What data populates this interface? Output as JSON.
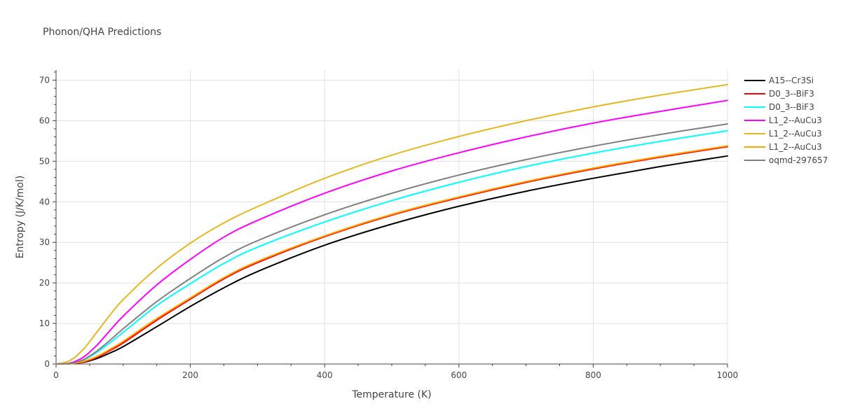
{
  "chart_data": {
    "type": "line",
    "title": "Phonon/QHA Predictions",
    "xlabel": "Temperature (K)",
    "ylabel": "Entropy (J/K/mol)",
    "xlim": [
      0,
      1000
    ],
    "ylim": [
      0,
      72.5
    ],
    "xticks": [
      0,
      200,
      400,
      600,
      800,
      1000
    ],
    "yticks": [
      0,
      10,
      20,
      30,
      40,
      50,
      60,
      70
    ],
    "grid": true,
    "legend_position": "top-right",
    "x": [
      0,
      20,
      40,
      60,
      80,
      100,
      150,
      200,
      250,
      300,
      400,
      500,
      600,
      700,
      800,
      900,
      1000
    ],
    "series": [
      {
        "name": "A15--Cr3Si",
        "color": "#000000",
        "values": [
          0,
          0.05,
          0.4,
          1.3,
          2.7,
          4.3,
          9.2,
          14.2,
          18.8,
          22.8,
          29.3,
          34.5,
          38.9,
          42.6,
          45.8,
          48.7,
          51.3
        ]
      },
      {
        "name": "D0_3--BiF3",
        "color": "#ff0000",
        "values": [
          0,
          0.05,
          0.5,
          1.6,
          3.3,
          5.2,
          10.8,
          16.0,
          21.0,
          25.0,
          31.4,
          36.7,
          41.0,
          44.8,
          48.1,
          51.0,
          53.6
        ]
      },
      {
        "name": "D0_3--BiF3",
        "color": "#00ffff",
        "values": [
          0,
          0.1,
          0.9,
          2.8,
          5.2,
          7.8,
          14.4,
          19.8,
          24.8,
          28.8,
          35.0,
          40.3,
          44.8,
          48.7,
          52.0,
          54.9,
          57.5
        ]
      },
      {
        "name": "L1_2--AuCu3",
        "color": "#ff00ff",
        "values": [
          0,
          0.2,
          1.6,
          4.5,
          8.2,
          11.8,
          19.5,
          25.8,
          31.3,
          35.4,
          42.1,
          47.6,
          52.1,
          56.0,
          59.4,
          62.3,
          65.0
        ]
      },
      {
        "name": "L1_2--AuCu3",
        "color": "#e6b820",
        "values": [
          0,
          0.8,
          3.5,
          7.7,
          12.0,
          15.9,
          23.6,
          29.8,
          34.8,
          38.8,
          45.8,
          51.5,
          56.1,
          60.0,
          63.4,
          66.3,
          68.9
        ]
      },
      {
        "name": "L1_2--AuCu3",
        "color": "#ffa500",
        "values": [
          0,
          0.05,
          0.6,
          1.8,
          3.6,
          5.6,
          11.2,
          16.3,
          21.3,
          25.3,
          31.6,
          36.9,
          41.2,
          45.0,
          48.3,
          51.2,
          53.8
        ]
      },
      {
        "name": "oqmd-297657",
        "color": "#808080",
        "values": [
          0,
          0.1,
          1.0,
          3.1,
          5.8,
          8.7,
          15.4,
          21.1,
          26.3,
          30.4,
          36.8,
          42.1,
          46.6,
          50.4,
          53.7,
          56.6,
          59.2
        ]
      }
    ]
  }
}
